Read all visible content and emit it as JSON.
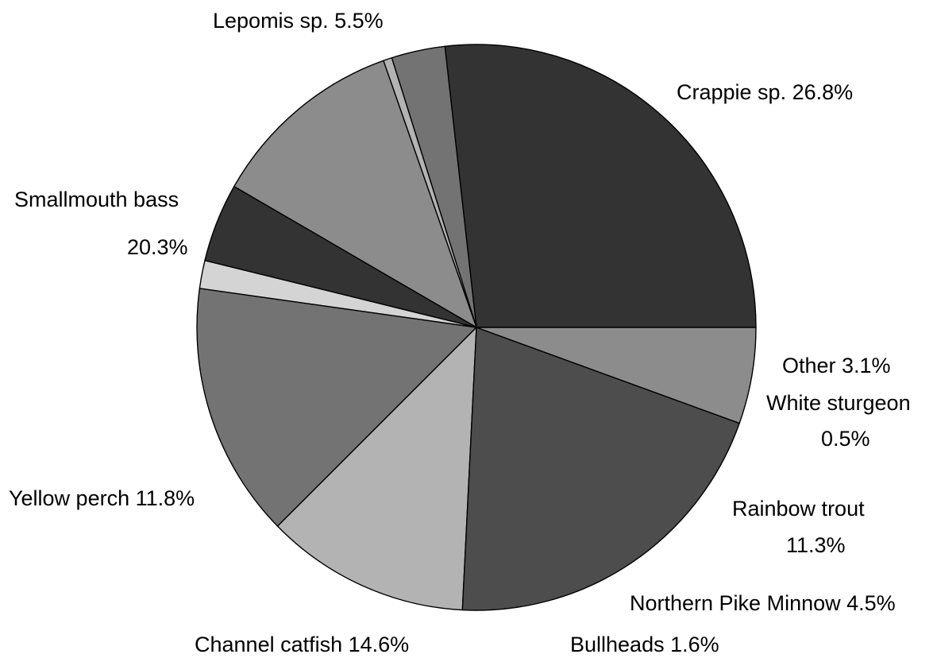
{
  "chart_data": {
    "type": "pie",
    "title": "",
    "slices": [
      {
        "name": "Crappie sp.",
        "value": 26.8,
        "color": "#333333",
        "label_lines": [
          {
            "text": "Crappie sp. 26.8%"
          }
        ]
      },
      {
        "name": "Other",
        "value": 3.1,
        "color": "#737373",
        "label_lines": [
          {
            "text": "Other  3.1%"
          }
        ]
      },
      {
        "name": "White sturgeon",
        "value": 0.5,
        "color": "#b3b3b3",
        "label_lines": [
          {
            "text": "White sturgeon"
          },
          {
            "text": "0.5%"
          }
        ]
      },
      {
        "name": "Rainbow trout",
        "value": 11.3,
        "color": "#8c8c8c",
        "label_lines": [
          {
            "text": "Rainbow trout"
          },
          {
            "text": "11.3%"
          }
        ]
      },
      {
        "name": "Northern Pike Minnow",
        "value": 4.5,
        "color": "#333333",
        "label_lines": [
          {
            "text": "Northern Pike Minnow 4.5%"
          }
        ]
      },
      {
        "name": "Bullheads",
        "value": 1.6,
        "color": "#d4d4d4",
        "label_lines": [
          {
            "text": "Bullheads 1.6%"
          }
        ]
      },
      {
        "name": "Channel catfish",
        "value": 14.6,
        "color": "#737373",
        "label_lines": [
          {
            "text": "Channel catfish 14.6%"
          }
        ]
      },
      {
        "name": "Yellow perch",
        "value": 11.8,
        "color": "#b3b3b3",
        "label_lines": [
          {
            "text": "Yellow perch 11.8%"
          }
        ]
      },
      {
        "name": "Smallmouth bass",
        "value": 20.3,
        "color": "#4d4d4d",
        "label_lines": [
          {
            "text": "Smallmouth bass"
          },
          {
            "text": "20.3%"
          }
        ]
      },
      {
        "name": "Lepomis sp.",
        "value": 5.5,
        "color": "#8c8c8c",
        "label_lines": [
          {
            "text": "Lepomis sp. 5.5%"
          }
        ]
      }
    ]
  }
}
